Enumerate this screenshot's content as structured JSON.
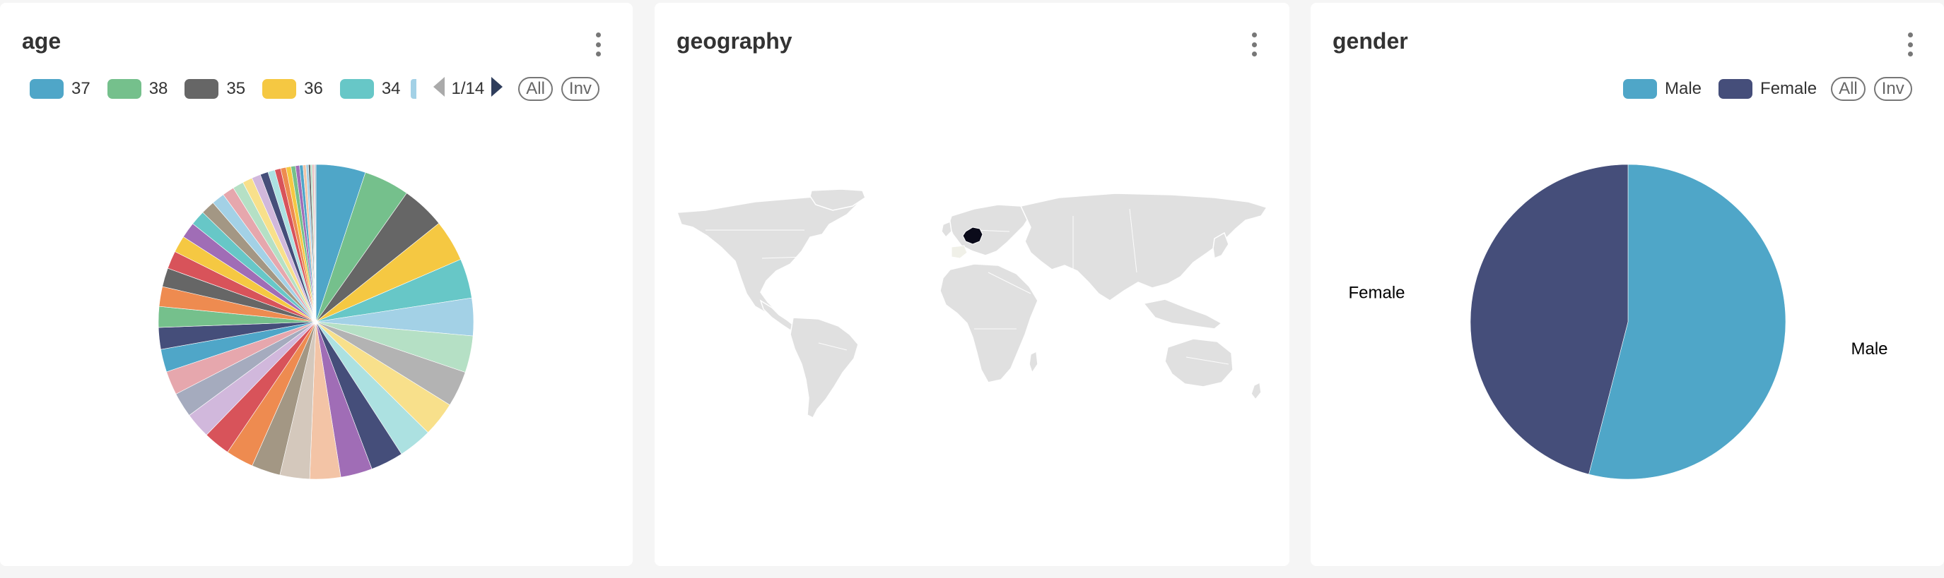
{
  "panels": {
    "age": {
      "title": "age",
      "legend_items": [
        {
          "label": "37",
          "color": "#4fa6c8"
        },
        {
          "label": "38",
          "color": "#75c08c"
        },
        {
          "label": "35",
          "color": "#666666"
        },
        {
          "label": "36",
          "color": "#f5c842"
        },
        {
          "label": "34",
          "color": "#67c7c7"
        }
      ],
      "pager": "1/14",
      "all_label": "All",
      "inv_label": "Inv"
    },
    "geography": {
      "title": "geography",
      "map": {
        "land_color": "#e0e0e0",
        "highlight_country": "France",
        "highlight_color": "#0b0b1a"
      }
    },
    "gender": {
      "title": "gender",
      "legend_items": [
        {
          "label": "Male",
          "color": "#4fa6c8"
        },
        {
          "label": "Female",
          "color": "#454e7a"
        }
      ],
      "all_label": "All",
      "inv_label": "Inv"
    }
  },
  "chart_data": [
    {
      "type": "pie",
      "title": "age",
      "note_visible_legend": [
        "37",
        "38",
        "35",
        "36",
        "34"
      ],
      "slices": [
        {
          "color": "#4fa6c8",
          "value": 5.0
        },
        {
          "color": "#75c08c",
          "value": 4.6
        },
        {
          "color": "#666666",
          "value": 4.4
        },
        {
          "color": "#f5c842",
          "value": 4.2
        },
        {
          "color": "#67c7c7",
          "value": 4.0
        },
        {
          "color": "#a3d1e6",
          "value": 3.8
        },
        {
          "color": "#b5e0c5",
          "value": 3.7
        },
        {
          "color": "#b3b3b3",
          "value": 3.6
        },
        {
          "color": "#f8e08b",
          "value": 3.5
        },
        {
          "color": "#ace1e1",
          "value": 3.4
        },
        {
          "color": "#454e7a",
          "value": 3.3
        },
        {
          "color": "#a06db6",
          "value": 3.2
        },
        {
          "color": "#f3c4a6",
          "value": 3.1
        },
        {
          "color": "#d4c8bc",
          "value": 3.0
        },
        {
          "color": "#a39784",
          "value": 2.9
        },
        {
          "color": "#ee8b50",
          "value": 2.8
        },
        {
          "color": "#d8535a",
          "value": 2.7
        },
        {
          "color": "#d1b8dc",
          "value": 2.6
        },
        {
          "color": "#a5abbe",
          "value": 2.5
        },
        {
          "color": "#e6a7ad",
          "value": 2.4
        },
        {
          "color": "#4fa6c8",
          "value": 2.3
        },
        {
          "color": "#454e7a",
          "value": 2.2
        },
        {
          "color": "#75c08c",
          "value": 2.1
        },
        {
          "color": "#ee8b50",
          "value": 2.0
        },
        {
          "color": "#666666",
          "value": 1.9
        },
        {
          "color": "#d8535a",
          "value": 1.8
        },
        {
          "color": "#f5c842",
          "value": 1.7
        },
        {
          "color": "#a06db6",
          "value": 1.6
        },
        {
          "color": "#67c7c7",
          "value": 1.5
        },
        {
          "color": "#a39784",
          "value": 1.4
        },
        {
          "color": "#a3d1e6",
          "value": 1.3
        },
        {
          "color": "#e6a7ad",
          "value": 1.2
        },
        {
          "color": "#b5e0c5",
          "value": 1.1
        },
        {
          "color": "#f8e08b",
          "value": 1.0
        },
        {
          "color": "#d1b8dc",
          "value": 0.9
        },
        {
          "color": "#454e7a",
          "value": 0.8
        },
        {
          "color": "#ace1e1",
          "value": 0.7
        },
        {
          "color": "#d8535a",
          "value": 0.6
        },
        {
          "color": "#ee8b50",
          "value": 0.55
        },
        {
          "color": "#f5c842",
          "value": 0.5
        },
        {
          "color": "#75c08c",
          "value": 0.45
        },
        {
          "color": "#a06db6",
          "value": 0.4
        },
        {
          "color": "#4fa6c8",
          "value": 0.35
        },
        {
          "color": "#f3c4a6",
          "value": 0.3
        },
        {
          "color": "#a3d1e6",
          "value": 0.25
        },
        {
          "color": "#666666",
          "value": 0.2
        },
        {
          "color": "#b5e0c5",
          "value": 0.18
        },
        {
          "color": "#e6a7ad",
          "value": 0.15
        },
        {
          "color": "#d4c8bc",
          "value": 0.12
        },
        {
          "color": "#a5abbe",
          "value": 0.1
        }
      ]
    },
    {
      "type": "pie",
      "title": "gender",
      "categories": [
        "Male",
        "Female"
      ],
      "values": [
        54,
        46
      ],
      "colors": [
        "#4fa6c8",
        "#454e7a"
      ],
      "labels_outside": true
    }
  ]
}
